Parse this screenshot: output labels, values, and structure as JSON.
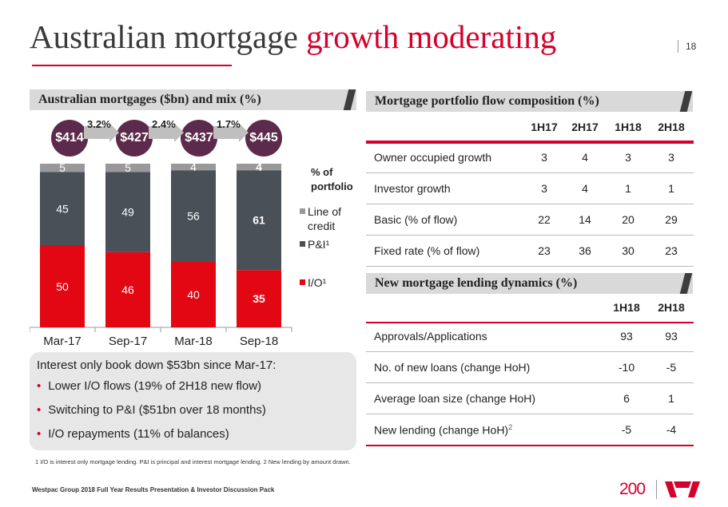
{
  "title": {
    "main": "Australian mortgage",
    "highlight": "growth moderating"
  },
  "page_number": "18",
  "left_panel": {
    "header": "Australian mortgages ($bn) and mix (%)",
    "balances": [
      "$414",
      "$427",
      "$437",
      "$445"
    ],
    "growth": [
      "3.2%",
      "2.4%",
      "1.7%"
    ],
    "portfolio_label": [
      "% of",
      "portfolio"
    ],
    "legend": [
      {
        "label_lines": [
          "Line of",
          "credit"
        ],
        "color": "#999999"
      },
      {
        "label_lines": [
          "P&I¹"
        ],
        "color": "#4a5058"
      },
      {
        "label_lines": [
          "I/O¹"
        ],
        "color": "#e30613"
      }
    ]
  },
  "chart_data": {
    "type": "bar",
    "stacked": true,
    "categories": [
      "Mar-17",
      "Sep-17",
      "Mar-18",
      "Sep-18"
    ],
    "series": [
      {
        "name": "I/O¹",
        "values": [
          50,
          46,
          40,
          35
        ],
        "color": "#e30613"
      },
      {
        "name": "P&I¹",
        "values": [
          45,
          49,
          56,
          61
        ],
        "color": "#4a5058"
      },
      {
        "name": "Line of credit",
        "values": [
          5,
          5,
          4,
          4
        ],
        "color": "#999999"
      }
    ],
    "ylim": [
      0,
      100
    ],
    "title": "Australian mortgages ($bn) and mix (%)",
    "xlabel": "",
    "ylabel": ""
  },
  "note": {
    "heading": "Interest only book down $53bn since Mar-17:",
    "bullets": [
      "Lower I/O flows (19% of 2H18 new flow)",
      "Switching to P&I ($51bn over 18 months)",
      "I/O repayments (11% of balances)"
    ]
  },
  "flow_table": {
    "header": "Mortgage portfolio flow composition (%)",
    "columns": [
      "1H17",
      "2H17",
      "1H18",
      "2H18"
    ],
    "rows": [
      {
        "label": "Owner occupied growth",
        "values": [
          "3",
          "4",
          "3",
          "3"
        ]
      },
      {
        "label": "Investor growth",
        "values": [
          "3",
          "4",
          "1",
          "1"
        ]
      },
      {
        "label": "Basic (% of flow)",
        "values": [
          "22",
          "14",
          "20",
          "29"
        ]
      },
      {
        "label": "Fixed rate (% of flow)",
        "values": [
          "23",
          "36",
          "30",
          "23"
        ]
      }
    ]
  },
  "lending_table": {
    "header": "New mortgage lending dynamics (%)",
    "columns": [
      "1H18",
      "2H18"
    ],
    "rows": [
      {
        "label": "Approvals/Applications",
        "sup": "",
        "values": [
          "93",
          "93"
        ]
      },
      {
        "label": "No. of new loans (change HoH)",
        "sup": "",
        "values": [
          "-10",
          "-5"
        ]
      },
      {
        "label": "Average loan size (change HoH)",
        "sup": "",
        "values": [
          "6",
          "1"
        ]
      },
      {
        "label": "New lending (change HoH)",
        "sup": "2",
        "values": [
          "-5",
          "-4"
        ]
      }
    ]
  },
  "footnote": "1 I/O is interest only mortgage lending. P&I is principal and interest mortgage lending. 2 New lending by amount drawn.",
  "footer": "Westpac Group 2018 Full Year Results Presentation & Investor Discussion Pack",
  "logo": {
    "anniversary": "200"
  }
}
